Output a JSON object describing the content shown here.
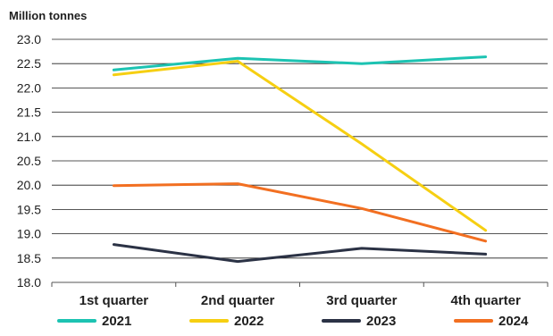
{
  "chart_data": {
    "type": "line",
    "title": "",
    "ylabel": "Million tonnes",
    "xlabel": "",
    "categories": [
      "1st quarter",
      "2nd quarter",
      "3rd quarter",
      "4th quarter"
    ],
    "ylim": [
      18.0,
      23.0
    ],
    "yticks": [
      "18.0",
      "18.5",
      "19.0",
      "19.5",
      "20.0",
      "20.5",
      "21.0",
      "21.5",
      "22.0",
      "22.5",
      "23.0"
    ],
    "grid": true,
    "legend_position": "bottom",
    "series": [
      {
        "name": "2021",
        "color": "#1cc3b2",
        "values": [
          22.37,
          22.61,
          22.5,
          22.64
        ]
      },
      {
        "name": "2022",
        "color": "#f6cf12",
        "values": [
          22.27,
          22.55,
          20.85,
          19.07
        ]
      },
      {
        "name": "2023",
        "color": "#2b3245",
        "values": [
          18.78,
          18.43,
          18.7,
          18.58
        ]
      },
      {
        "name": "2024",
        "color": "#f26f21",
        "values": [
          19.99,
          20.03,
          19.52,
          18.85
        ]
      }
    ]
  }
}
